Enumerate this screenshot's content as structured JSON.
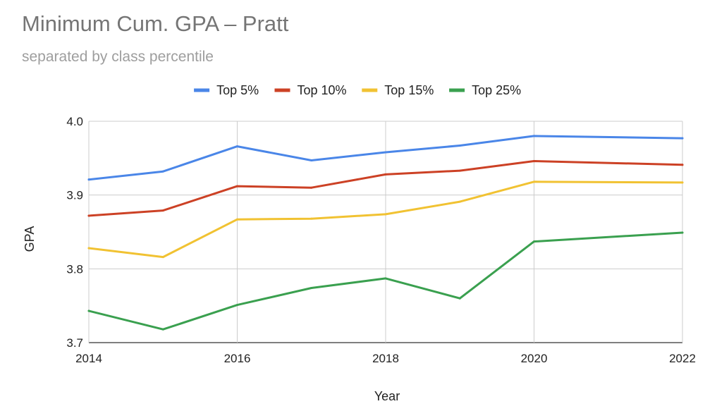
{
  "chart_data": {
    "type": "line",
    "title": "Minimum Cum. GPA – Pratt",
    "subtitle": "separated by class percentile",
    "xlabel": "Year",
    "ylabel": "GPA",
    "x": [
      2014,
      2015,
      2016,
      2017,
      2018,
      2019,
      2020,
      2022
    ],
    "xticks": [
      "2014",
      "2016",
      "2018",
      "2020",
      "2022"
    ],
    "xlim": [
      2014,
      2022
    ],
    "ylim": [
      3.7,
      4.0
    ],
    "yticks": [
      "3.7",
      "3.8",
      "3.9",
      "4.0"
    ],
    "legend_position": "top-center",
    "grid": true,
    "series": [
      {
        "name": "Top 5%",
        "color": "#4a86e8",
        "values": [
          3.921,
          3.932,
          3.966,
          3.947,
          3.958,
          3.967,
          3.98,
          3.977
        ]
      },
      {
        "name": "Top 10%",
        "color": "#cc4125",
        "values": [
          3.872,
          3.879,
          3.912,
          3.91,
          3.928,
          3.933,
          3.946,
          3.941
        ]
      },
      {
        "name": "Top 15%",
        "color": "#f1c232",
        "values": [
          3.828,
          3.816,
          3.867,
          3.868,
          3.874,
          3.891,
          3.918,
          3.917
        ]
      },
      {
        "name": "Top 25%",
        "color": "#3aa04f",
        "values": [
          3.743,
          3.718,
          3.751,
          3.774,
          3.787,
          3.76,
          3.837,
          3.849
        ]
      }
    ]
  }
}
